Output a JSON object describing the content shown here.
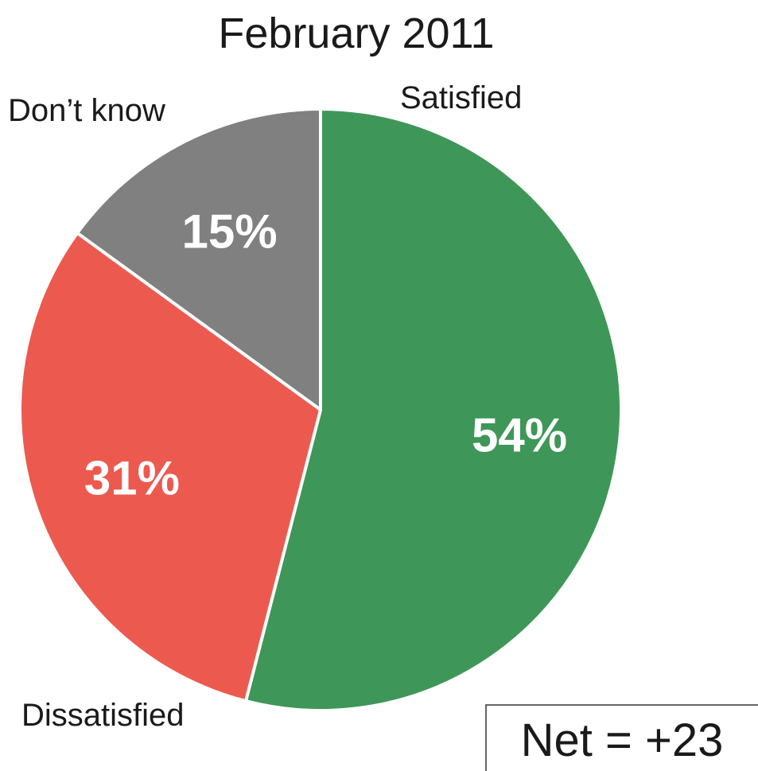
{
  "chart_data": {
    "type": "pie",
    "title": "February 2011",
    "slices": [
      {
        "label": "Satisfied",
        "value": 54,
        "value_label": "54%",
        "color": "#3e9758"
      },
      {
        "label": "Dissatisfied",
        "value": 31,
        "value_label": "31%",
        "color": "#ec5a4f"
      },
      {
        "label": "Don’t know",
        "value": 15,
        "value_label": "15%",
        "color": "#808080"
      }
    ],
    "annotation": "Net = +23"
  }
}
